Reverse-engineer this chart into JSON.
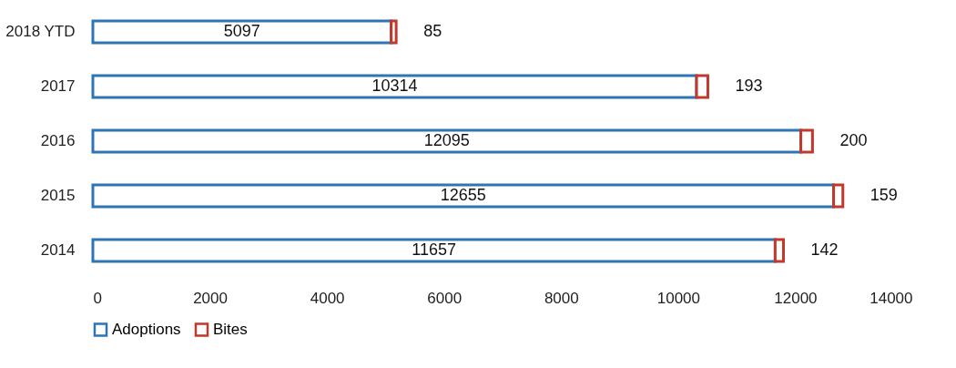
{
  "chart_data": {
    "type": "bar",
    "orientation": "horizontal",
    "stacked": true,
    "categories": [
      "2018 YTD",
      "2017",
      "2016",
      "2015",
      "2014"
    ],
    "series": [
      {
        "name": "Adoptions",
        "color": "#2e75b6",
        "values": [
          5097,
          10314,
          12095,
          12655,
          11657
        ]
      },
      {
        "name": "Bites",
        "color": "#c0392b",
        "values": [
          85,
          193,
          200,
          159,
          142
        ]
      }
    ],
    "xlim": [
      0,
      14000
    ],
    "xticks": [
      0,
      2000,
      4000,
      6000,
      8000,
      10000,
      12000,
      14000
    ],
    "grid": false,
    "legend": "bottom",
    "data_labels": true
  }
}
